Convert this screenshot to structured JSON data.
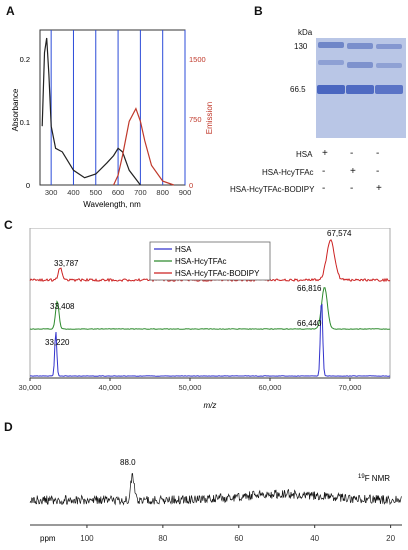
{
  "panels": {
    "a": "A",
    "b": "B",
    "c": "C",
    "d": "D"
  },
  "panel_a": {
    "ylabel_left": "Absorbance",
    "ylabel_right": "Emission",
    "xlabel": "Wavelength, nm",
    "x_ticks": [
      "300",
      "400",
      "500",
      "600",
      "700",
      "800",
      "900"
    ],
    "left_ticks": [
      "0.2",
      "0.1",
      "0"
    ],
    "right_ticks": [
      "1500",
      "750",
      "0"
    ],
    "colors": {
      "absorbance": "#222222",
      "emission": "#c0392b",
      "vlines": "#2b4bd8"
    }
  },
  "panel_b": {
    "kda_label": "kDa",
    "markers": [
      "130",
      "66.5"
    ],
    "rows": [
      {
        "label": "HSA",
        "signs": [
          "+",
          "-",
          "-"
        ]
      },
      {
        "label": "HSA-HcyTFAc",
        "signs": [
          "-",
          "+",
          "-"
        ]
      },
      {
        "label": "HSA-HcyTFAc-BODIPY",
        "signs": [
          "-",
          "-",
          "+"
        ]
      }
    ]
  },
  "panel_c": {
    "xlabel": "m/z",
    "x_ticks": [
      "30,000",
      "40,000",
      "50,000",
      "60,000",
      "70,000"
    ],
    "legend": [
      "HSA",
      "HSA-HcyTFAc",
      "HSA-HcyTFAc-BODIPY"
    ],
    "peak_labels": {
      "top_1": "33,787",
      "top_2": "67,574",
      "mid_1": "33,408",
      "mid_2": "66,816",
      "bot_1": "33,220",
      "bot_2": "66,440"
    },
    "colors": {
      "hsa": "#3333cc",
      "tfac": "#2e8b2e",
      "bodipy": "#cc2222"
    }
  },
  "panel_d": {
    "peak_label": "88.0",
    "nucleus_sup": "19",
    "nucleus_text": "F NMR",
    "x_unit": "ppm",
    "x_ticks": [
      "100",
      "80",
      "60",
      "40",
      "20"
    ]
  },
  "chart_data": [
    {
      "type": "line",
      "title": "",
      "xlabel": "Wavelength, nm",
      "ylabel": "Absorbance",
      "xlim": [
        250,
        900
      ],
      "series": [
        {
          "name": "",
          "axis": "left",
          "x": [
            260,
            270,
            280,
            290,
            300,
            320,
            350,
            400,
            450,
            500,
            550,
            580,
            600,
            620,
            650,
            700
          ],
          "y": [
            0.08,
            0.18,
            0.2,
            0.15,
            0.08,
            0.05,
            0.045,
            0.02,
            0.01,
            0.015,
            0.03,
            0.04,
            0.05,
            0.045,
            0.02,
            0.0
          ]
        },
        {
          "name": "",
          "axis": "right",
          "x": [
            580,
            600,
            620,
            650,
            680,
            700,
            720,
            750,
            800,
            850
          ],
          "y": [
            0,
            100,
            300,
            650,
            780,
            650,
            450,
            200,
            40,
            0
          ]
        }
      ],
      "ylim_left": [
        0,
        0.2
      ],
      "ylim_right": [
        0,
        1500
      ]
    },
    {
      "type": "line",
      "title": "",
      "xlabel": "m/z",
      "xlim": [
        30000,
        75000
      ],
      "series": [
        {
          "name": "HSA",
          "peaks": [
            {
              "x": 33220
            },
            {
              "x": 66440
            }
          ]
        },
        {
          "name": "HSA-HcyTFAc",
          "peaks": [
            {
              "x": 33408
            },
            {
              "x": 66816
            }
          ]
        },
        {
          "name": "HSA-HcyTFAc-BODIPY",
          "peaks": [
            {
              "x": 33787
            },
            {
              "x": 67574
            }
          ]
        }
      ]
    },
    {
      "type": "line",
      "title": "",
      "xlabel": "ppm",
      "xlim": [
        115,
        17
      ],
      "series": [
        {
          "name": "",
          "peaks": [
            {
              "x": 88.0
            }
          ]
        }
      ]
    }
  ]
}
